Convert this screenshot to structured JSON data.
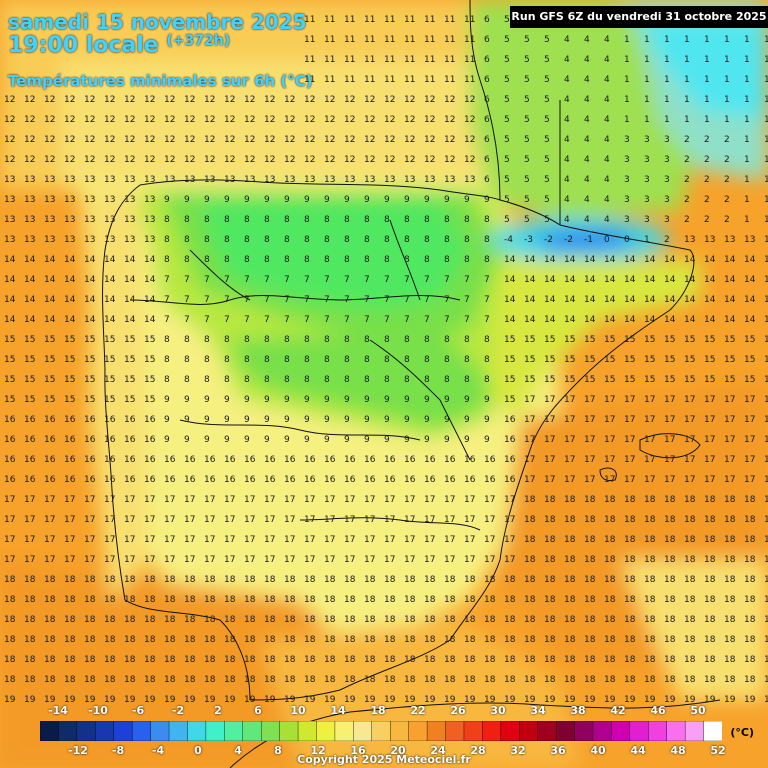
{
  "header": {
    "date_line": "samedi 15 novembre 2025",
    "time_line": "19:00 locale",
    "lead_time": "(+372h)",
    "parameter": "Températures minimales sur 6h (°C)"
  },
  "run_info": "Run GFS 6Z du vendredi 31 octobre 2025",
  "legend": {
    "unit": "(°C)",
    "top_ticks": [
      "-14",
      "-10",
      "-6",
      "-2",
      "2",
      "6",
      "10",
      "14",
      "18",
      "22",
      "26",
      "30",
      "34",
      "38",
      "42",
      "46",
      "50"
    ],
    "bottom_ticks": [
      "-12",
      "-8",
      "-4",
      "0",
      "4",
      "8",
      "12",
      "16",
      "20",
      "24",
      "28",
      "32",
      "36",
      "40",
      "44",
      "48",
      "52"
    ],
    "colors": [
      "#0a1a4a",
      "#102a6a",
      "#14308a",
      "#1838b0",
      "#1f40d8",
      "#2a60f0",
      "#3a8cf0",
      "#40b4f0",
      "#40d8e8",
      "#40f0c8",
      "#50f0a0",
      "#60e878",
      "#80e050",
      "#a8e038",
      "#d0e830",
      "#f0f040",
      "#f8f070",
      "#f8e890",
      "#f8d060",
      "#f8b840",
      "#f8a030",
      "#f08020",
      "#f06020",
      "#f04018",
      "#f02010",
      "#e00010",
      "#c00010",
      "#a00020",
      "#800030",
      "#900060",
      "#b00090",
      "#d000b0",
      "#e020d0",
      "#f040e0",
      "#f870f0",
      "#f8a0f8",
      "#ffffff"
    ]
  },
  "copyright": "Copyright 2025 Meteociel.fr",
  "map": {
    "region": "Péninsule Ibérique",
    "sample_values": {
      "north_west_sea": "13",
      "central_spain": "7",
      "pyrenees_cold": "-2",
      "mediterranean": "18",
      "south_atlantic": "19"
    }
  }
}
